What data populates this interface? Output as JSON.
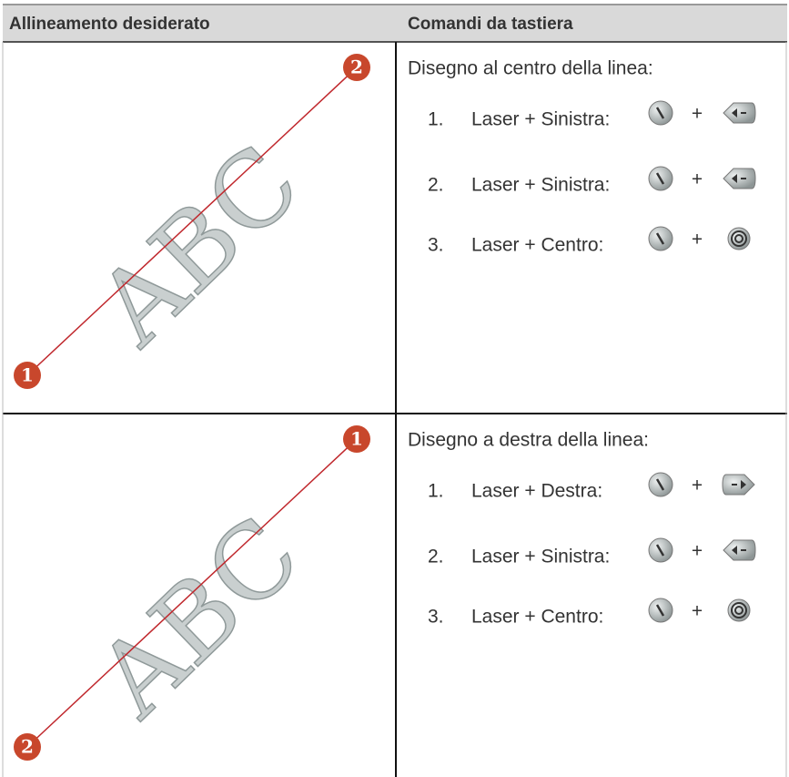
{
  "table": {
    "header": [
      "Allineamento desiderato",
      "Comandi da tastiera"
    ],
    "rows": [
      {
        "image": {
          "text": "ABC",
          "start_marker": "1",
          "end_marker": "2"
        },
        "description": "Disegno al centro della linea:",
        "steps": [
          {
            "number": "1.",
            "text": "Laser + Sinistra:"
          },
          {
            "number": "2.",
            "text": "Laser + Sinistra:"
          },
          {
            "number": "3.",
            "text": "Laser + Centro:"
          }
        ]
      },
      {
        "image": {
          "text": "ABC",
          "start_marker": "2",
          "end_marker": "1"
        },
        "description": "Disegno a destra della linea:",
        "steps": [
          {
            "number": "1.",
            "text": "Laser + Destra:"
          },
          {
            "number": "2.",
            "text": "Laser + Sinistra:"
          },
          {
            "number": "3.",
            "text": "Laser + Centro:"
          }
        ]
      }
    ]
  },
  "plus": "+"
}
